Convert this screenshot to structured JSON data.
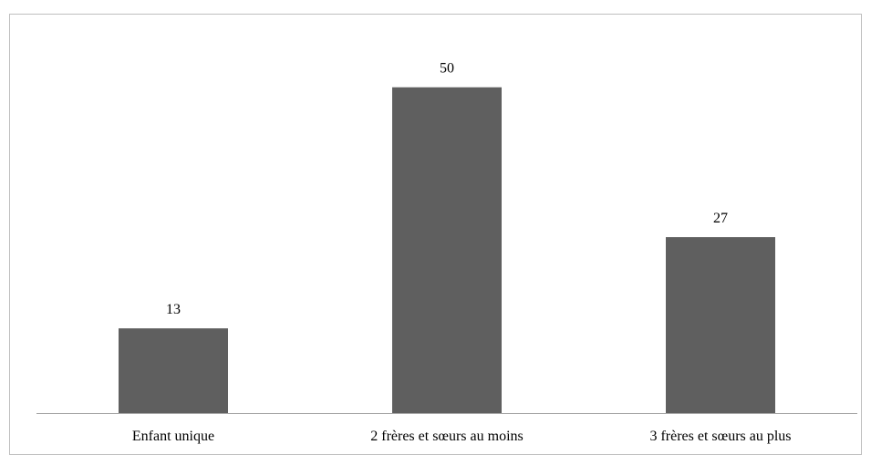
{
  "chart_data": {
    "type": "bar",
    "categories": [
      "Enfant unique",
      "2 frères et sœurs au moins",
      "3 frères et sœurs au plus"
    ],
    "values": [
      13,
      50,
      27
    ],
    "data_labels": [
      "13",
      "50",
      "27"
    ],
    "title": "",
    "xlabel": "",
    "ylabel": "",
    "ylim": [
      0,
      55
    ],
    "grid": false,
    "legend": "none",
    "colors": {
      "bar": "#5f5f5f",
      "axis": "#a6a6a6",
      "border": "#bfbfbf"
    }
  }
}
